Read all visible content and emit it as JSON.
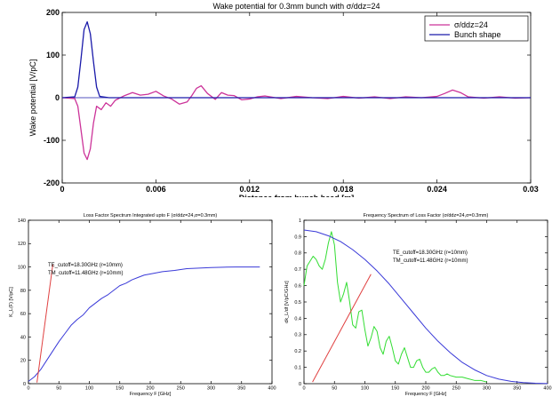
{
  "chart_data": [
    {
      "type": "line",
      "title": "Wake potential for 0.3mm bunch with σ/ddz=24",
      "xlabel": "Distance from bunch head [m]",
      "ylabel": "Wake potential [V/pC]",
      "xlim": [
        0,
        0.03
      ],
      "ylim": [
        -200,
        200
      ],
      "xticks": [
        0,
        0.006,
        0.012,
        0.018,
        0.024,
        0.03
      ],
      "xtick_labels": [
        "0",
        "0.006",
        "0.012",
        "0.018",
        "0.024",
        "0.03"
      ],
      "yticks": [
        -200,
        -100,
        0,
        100,
        200
      ],
      "ytick_labels": [
        "-200",
        "-100",
        "0",
        "100",
        "200"
      ],
      "grid": false,
      "legend": "top-right",
      "series": [
        {
          "name": "σ/ddz=24",
          "color": "#cc3399",
          "x": [
            0,
            0.0008,
            0.001,
            0.0012,
            0.0014,
            0.0016,
            0.0018,
            0.002,
            0.0022,
            0.0025,
            0.0028,
            0.0031,
            0.0034,
            0.004,
            0.0045,
            0.005,
            0.0055,
            0.006,
            0.0065,
            0.007,
            0.0075,
            0.008,
            0.0083,
            0.0086,
            0.0089,
            0.0093,
            0.0098,
            0.0102,
            0.0106,
            0.011,
            0.0115,
            0.012,
            0.0125,
            0.013,
            0.014,
            0.015,
            0.016,
            0.017,
            0.018,
            0.019,
            0.02,
            0.021,
            0.022,
            0.023,
            0.024,
            0.0245,
            0.025,
            0.0255,
            0.026,
            0.027,
            0.028,
            0.029,
            0.03
          ],
          "y": [
            0,
            -2,
            -20,
            -75,
            -130,
            -145,
            -120,
            -60,
            -20,
            -28,
            -12,
            -20,
            -6,
            5,
            12,
            6,
            8,
            15,
            4,
            -3,
            -15,
            -10,
            5,
            22,
            28,
            10,
            -4,
            12,
            6,
            5,
            -5,
            -3,
            2,
            4,
            -2,
            3,
            0,
            -2,
            3,
            -1,
            2,
            -2,
            2,
            0,
            3,
            10,
            18,
            12,
            2,
            -1,
            2,
            -1,
            0
          ]
        },
        {
          "name": "Bunch shape",
          "color": "#1a1aaa",
          "x": [
            0,
            0.0008,
            0.001,
            0.0012,
            0.0014,
            0.0016,
            0.0018,
            0.002,
            0.0022,
            0.0024,
            0.003,
            0.03
          ],
          "y": [
            0,
            2,
            25,
            90,
            160,
            178,
            150,
            85,
            25,
            3,
            0,
            0
          ]
        }
      ]
    },
    {
      "type": "line",
      "title": "Loss Factor Spectrum Integrated upto F (σ/ddz=24,σ=0.3mm)",
      "xlabel": "Frequency F [GHz]",
      "ylabel": "K_L(F) [V/pC]",
      "xlim": [
        0,
        400
      ],
      "ylim": [
        0,
        140
      ],
      "xticks": [
        0,
        50,
        100,
        150,
        200,
        250,
        300,
        350,
        400
      ],
      "xtick_labels": [
        "0",
        "50",
        "100",
        "150",
        "200",
        "250",
        "300",
        "350",
        "400"
      ],
      "yticks": [
        0,
        20,
        40,
        60,
        80,
        100,
        120,
        140
      ],
      "ytick_labels": [
        "0",
        "20",
        "40",
        "60",
        "80",
        "100",
        "120",
        "140"
      ],
      "annotations": [
        "TE_cutoff=18.30GHz (r=10mm)",
        "TM_cutoff=11.48GHz (r=10mm)"
      ],
      "series": [
        {
          "color": "#3a3ad8",
          "x": [
            0,
            10,
            20,
            30,
            40,
            50,
            60,
            70,
            80,
            90,
            100,
            110,
            120,
            130,
            140,
            150,
            160,
            170,
            180,
            190,
            200,
            220,
            240,
            260,
            280,
            300,
            320,
            340,
            360,
            380
          ],
          "y": [
            2,
            6,
            12,
            20,
            28,
            36,
            43,
            50,
            55,
            59,
            65,
            69,
            73,
            76,
            80,
            84,
            86,
            89,
            91,
            93,
            94,
            96,
            97,
            98.5,
            99,
            99.5,
            99.8,
            100,
            100,
            100
          ]
        },
        {
          "color": "#e04040",
          "x": [
            40,
            14
          ],
          "y": [
            102,
            1
          ]
        }
      ]
    },
    {
      "type": "line",
      "title": "Frequency Spectrum of Loss Factor (σ/ddz=24,σ=0.3mm)",
      "xlabel": "Frequency F [GHz]",
      "ylabel": "dk_L/df [V/pC/GHz]",
      "xlim": [
        0,
        400
      ],
      "ylim": [
        0,
        1
      ],
      "xticks": [
        0,
        50,
        100,
        150,
        200,
        250,
        300,
        350,
        400
      ],
      "xtick_labels": [
        "0",
        "50",
        "100",
        "150",
        "200",
        "250",
        "300",
        "350",
        "400"
      ],
      "yticks": [
        0,
        0.1,
        0.2,
        0.3,
        0.4,
        0.5,
        0.6,
        0.7,
        0.8,
        0.9,
        1
      ],
      "ytick_labels": [
        "0",
        "0.1",
        "0.2",
        "0.3",
        "0.4",
        "0.5",
        "0.6",
        "0.7",
        "0.8",
        "0.9",
        "1"
      ],
      "annotations": [
        "TE_cutoff=18.30GHz (r=10mm)",
        "TM_cutoff=11.48GHz (r=10mm)"
      ],
      "series": [
        {
          "color": "#33dd33",
          "x": [
            0,
            5,
            10,
            15,
            20,
            25,
            30,
            35,
            40,
            45,
            50,
            55,
            60,
            65,
            70,
            75,
            80,
            85,
            90,
            95,
            100,
            105,
            110,
            115,
            120,
            125,
            130,
            135,
            140,
            145,
            150,
            155,
            160,
            165,
            170,
            175,
            180,
            185,
            190,
            195,
            200,
            205,
            210,
            215,
            220,
            225,
            230,
            235,
            240,
            250,
            260,
            270,
            280,
            290,
            300
          ],
          "y": [
            0.6,
            0.72,
            0.75,
            0.78,
            0.76,
            0.72,
            0.7,
            0.76,
            0.86,
            0.93,
            0.85,
            0.62,
            0.5,
            0.55,
            0.62,
            0.5,
            0.36,
            0.34,
            0.44,
            0.45,
            0.33,
            0.23,
            0.28,
            0.35,
            0.32,
            0.22,
            0.18,
            0.26,
            0.29,
            0.22,
            0.14,
            0.12,
            0.18,
            0.22,
            0.16,
            0.1,
            0.1,
            0.14,
            0.15,
            0.1,
            0.07,
            0.07,
            0.09,
            0.1,
            0.07,
            0.05,
            0.05,
            0.06,
            0.05,
            0.04,
            0.04,
            0.03,
            0.02,
            0.02,
            0.01
          ]
        },
        {
          "color": "#3a3ad8",
          "x": [
            0,
            20,
            40,
            60,
            80,
            100,
            120,
            140,
            160,
            180,
            200,
            220,
            240,
            260,
            280,
            300,
            320,
            340,
            360,
            380,
            400
          ],
          "y": [
            0.94,
            0.93,
            0.905,
            0.87,
            0.82,
            0.76,
            0.69,
            0.61,
            0.52,
            0.43,
            0.34,
            0.26,
            0.19,
            0.13,
            0.085,
            0.05,
            0.028,
            0.014,
            0.007,
            0.003,
            0.001
          ]
        },
        {
          "color": "#e04040",
          "x": [
            110,
            14
          ],
          "y": [
            0.67,
            0.01
          ]
        }
      ]
    }
  ]
}
